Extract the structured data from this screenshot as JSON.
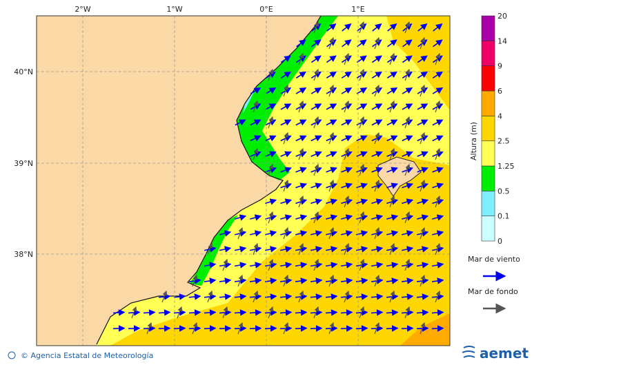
{
  "map": {
    "lon_labels": [
      "2°W",
      "1°W",
      "0°E",
      "1°E"
    ],
    "lat_labels": [
      "40°N",
      "39°N",
      "38°N"
    ],
    "colorbar": {
      "title": "Altura (m)",
      "ticks": [
        "0",
        "0.1",
        "0.5",
        "1.25",
        "2.5",
        "4",
        "6",
        "9",
        "14",
        "20"
      ],
      "colors": [
        "#ccffff",
        "#80eeff",
        "#00ee00",
        "#ffff55",
        "#ffd700",
        "#ffaa00",
        "#ff0000",
        "#ee0066",
        "#aa00aa"
      ]
    },
    "legend": [
      {
        "label": "Mar de viento",
        "color": "#0000ee"
      },
      {
        "label": "Mar de fondo",
        "color": "#555555"
      }
    ]
  },
  "footer": {
    "credit": "© Agencia Estatal de Meteorología",
    "logo": "aemet"
  }
}
